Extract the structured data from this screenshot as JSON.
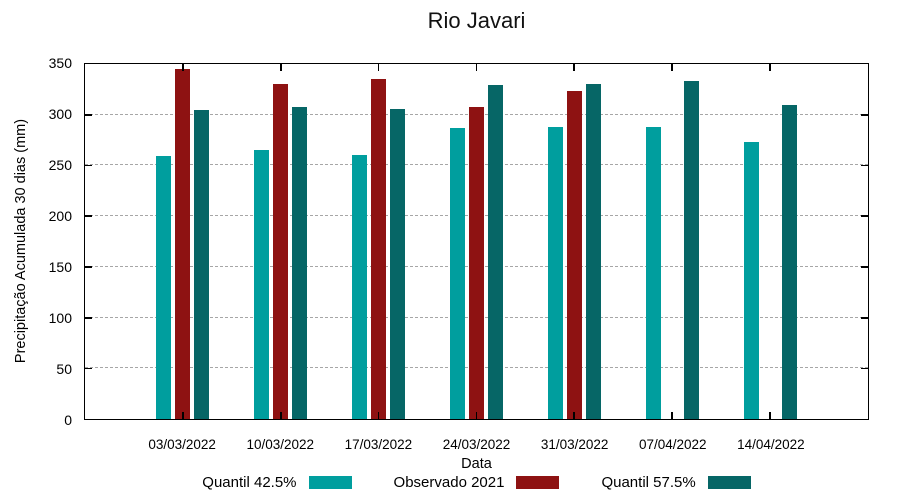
{
  "chart_data": {
    "type": "bar",
    "title": "Rio Javari",
    "xlabel": "Data",
    "ylabel": "Precipitação Acumulada 30 dias (mm)",
    "ylim": [
      0,
      350
    ],
    "ytick_step": 50,
    "grid": "horizontal-dashed-gray",
    "legend_position": "bottom-center",
    "categories": [
      "03/03/2022",
      "10/03/2022",
      "17/03/2022",
      "24/03/2022",
      "31/03/2022",
      "07/04/2022",
      "14/04/2022"
    ],
    "series": [
      {
        "name": "Quantil 42.5%",
        "color": "#009E9E",
        "values": [
          259,
          265,
          260,
          287,
          288,
          288,
          273
        ]
      },
      {
        "name": "Observado 2021",
        "color": "#8E1212",
        "values": [
          345,
          330,
          335,
          308,
          323,
          null,
          null
        ]
      },
      {
        "name": "Quantil 57.5%",
        "color": "#066666",
        "values": [
          305,
          308,
          306,
          329,
          330,
          333,
          310
        ]
      }
    ]
  },
  "colors": {
    "axis": "#000000",
    "grid": "#a6a6a6",
    "background": "#ffffff"
  }
}
